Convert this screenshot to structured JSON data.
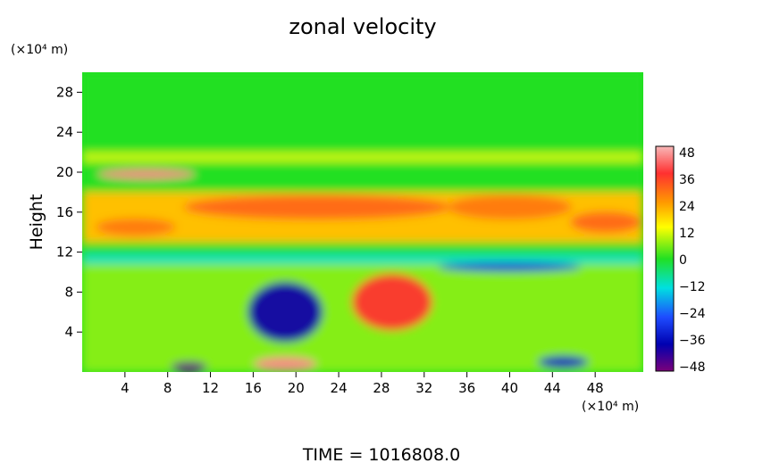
{
  "chart_data": {
    "type": "heatmap",
    "title": "zonal velocity",
    "ylabel": "Height",
    "y_unit_label": "(×10⁴ m)",
    "x_unit_label": "(×10⁴ m)",
    "footer": "TIME =  1016808.0",
    "xlim": [
      0,
      52.5
    ],
    "ylim": [
      0,
      30
    ],
    "x_ticks": [
      "4",
      "8",
      "12",
      "16",
      "20",
      "24",
      "28",
      "32",
      "36",
      "40",
      "44",
      "48"
    ],
    "y_ticks": [
      "4",
      "8",
      "12",
      "16",
      "20",
      "24",
      "28"
    ],
    "colorbar": {
      "range": [
        -48,
        48
      ],
      "ticks": [
        "48",
        "36",
        "24",
        "12",
        "0",
        "−12",
        "−24",
        "−36",
        "−48"
      ]
    },
    "colors": {
      "background_field": "#22e022",
      "max": "#f8b8b8",
      "min": "#7a007a"
    },
    "features": [
      {
        "x": 6,
        "y": 19.8,
        "value": 44
      },
      {
        "x": 22,
        "y": 16.5,
        "value": 30
      },
      {
        "x": 40,
        "y": 16.5,
        "value": 28
      },
      {
        "x": 49,
        "y": 15,
        "value": 30
      },
      {
        "x": 5,
        "y": 14.5,
        "value": 28
      },
      {
        "x": 19,
        "y": 6,
        "value": -38
      },
      {
        "x": 29,
        "y": 7,
        "value": 36
      },
      {
        "x": 40,
        "y": 10.5,
        "value": -30
      },
      {
        "x": 19,
        "y": 0.8,
        "value": 44
      },
      {
        "x": 10,
        "y": 0.5,
        "value": -46
      },
      {
        "x": 45,
        "y": 1,
        "value": -34
      }
    ]
  }
}
